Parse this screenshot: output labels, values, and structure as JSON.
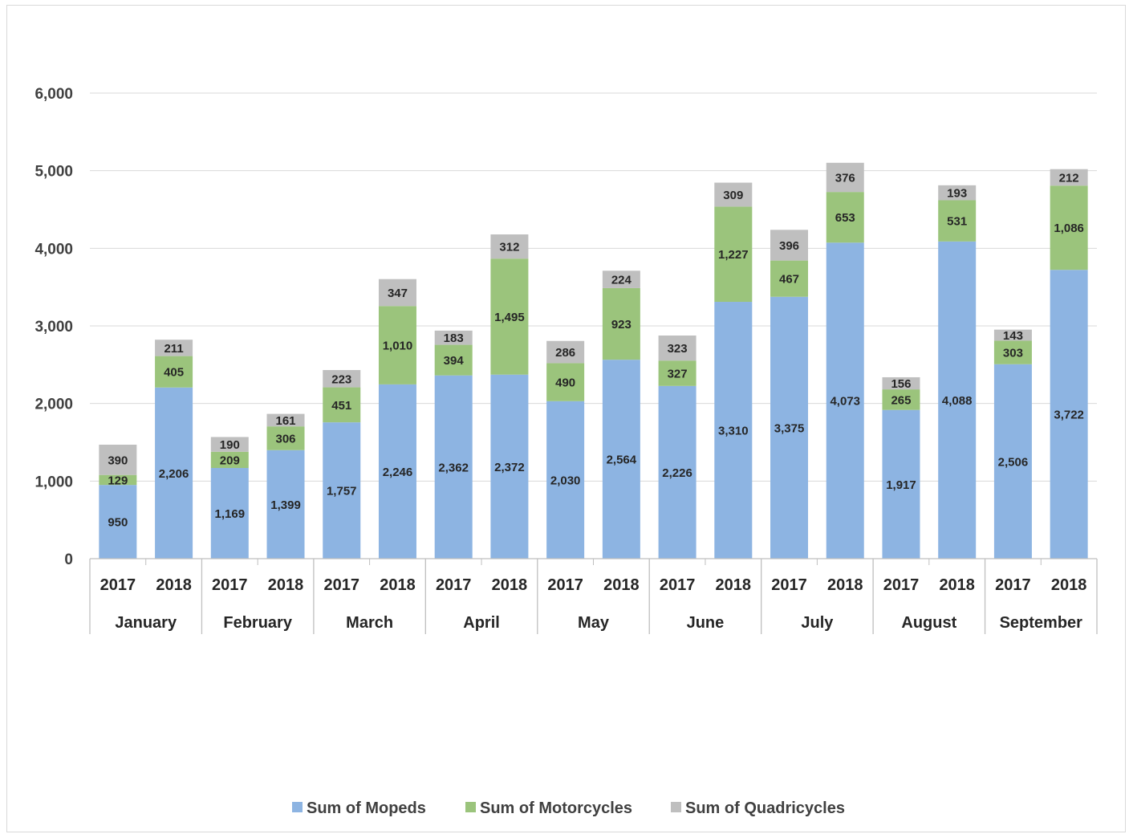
{
  "chart_data": {
    "type": "bar",
    "stacked": true,
    "grouping": "month-year",
    "groups": [
      {
        "month": "January",
        "years": [
          "2017",
          "2018"
        ]
      },
      {
        "month": "February",
        "years": [
          "2017",
          "2018"
        ]
      },
      {
        "month": "March",
        "years": [
          "2017",
          "2018"
        ]
      },
      {
        "month": "April",
        "years": [
          "2017",
          "2018"
        ]
      },
      {
        "month": "May",
        "years": [
          "2017",
          "2018"
        ]
      },
      {
        "month": "June",
        "years": [
          "2017",
          "2018"
        ]
      },
      {
        "month": "July",
        "years": [
          "2017",
          "2018"
        ]
      },
      {
        "month": "August",
        "years": [
          "2017",
          "2018"
        ]
      },
      {
        "month": "September",
        "years": [
          "2017",
          "2018"
        ]
      }
    ],
    "series": [
      {
        "name": "Sum of Mopeds",
        "color": "#8db4e2",
        "values": [
          950,
          2206,
          1169,
          1399,
          1757,
          2246,
          2362,
          2372,
          2030,
          2564,
          2226,
          3310,
          3375,
          4073,
          1917,
          4088,
          2506,
          3722
        ],
        "labels": [
          "950",
          "2,206",
          "1,169",
          "1,399",
          "1,757",
          "2,246",
          "2,362",
          "2,372",
          "2,030",
          "2,564",
          "2,226",
          "3,310",
          "3,375",
          "4,073",
          "1,917",
          "4,088",
          "2,506",
          "3,722"
        ]
      },
      {
        "name": "Sum of Motorcycles",
        "color": "#9bc47c",
        "values": [
          129,
          405,
          209,
          306,
          451,
          1010,
          394,
          1495,
          490,
          923,
          327,
          1227,
          467,
          653,
          265,
          531,
          303,
          1086
        ],
        "labels": [
          "129",
          "405",
          "209",
          "306",
          "451",
          "1,010",
          "394",
          "1,495",
          "490",
          "923",
          "327",
          "1,227",
          "467",
          "653",
          "265",
          "531",
          "303",
          "1,086"
        ]
      },
      {
        "name": "Sum of Quadricycles",
        "color": "#bfbfbf",
        "values": [
          390,
          211,
          190,
          161,
          223,
          347,
          183,
          312,
          286,
          224,
          323,
          309,
          396,
          376,
          156,
          193,
          143,
          212
        ],
        "labels": [
          "390",
          "211",
          "190",
          "161",
          "223",
          "347",
          "183",
          "312",
          "286",
          "224",
          "323",
          "309",
          "396",
          "376",
          "156",
          "193",
          "143",
          "212"
        ]
      }
    ],
    "ylim": [
      0,
      6000
    ],
    "yticks": [
      0,
      1000,
      2000,
      3000,
      4000,
      5000,
      6000
    ],
    "ytick_labels": [
      "0",
      "1,000",
      "2,000",
      "3,000",
      "4,000",
      "5,000",
      "6,000"
    ],
    "grid": true,
    "legend_position": "bottom",
    "title": "",
    "xlabel": "",
    "ylabel": ""
  }
}
